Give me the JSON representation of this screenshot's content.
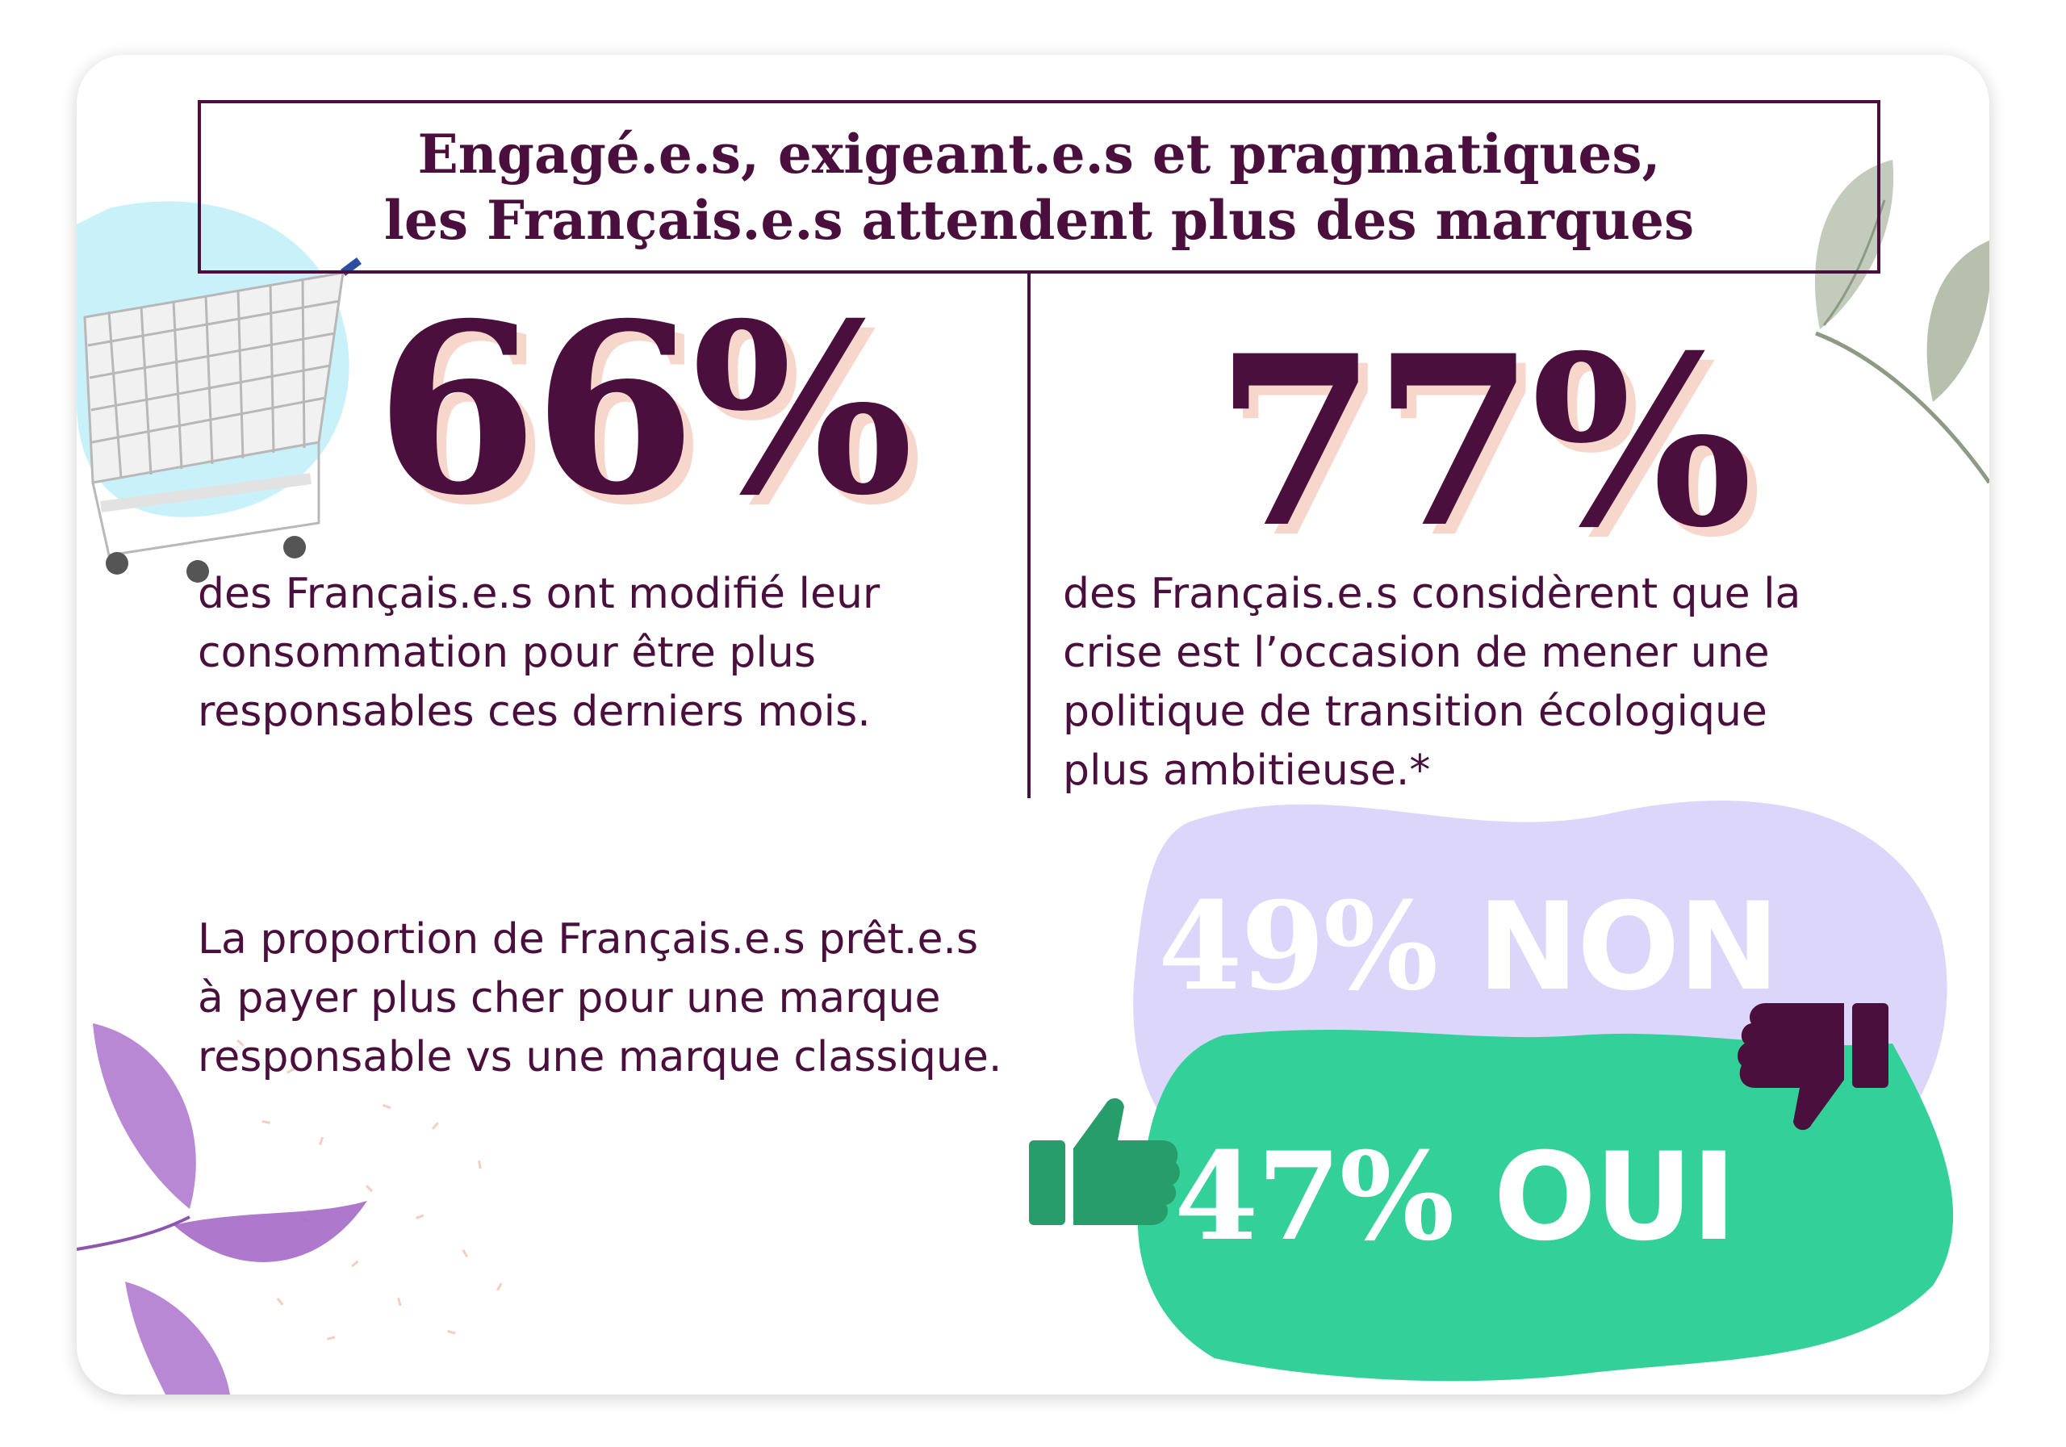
{
  "title": {
    "line1": "Engagé.e.s, exigeant.e.s et pragmatiques,",
    "line2": "les Français.e.s attendent plus des marques"
  },
  "stats": [
    {
      "value": "66%",
      "description_lines": [
        "des Français.e.s ont modifié leur",
        "consommation pour être plus",
        "responsables ces derniers mois."
      ]
    },
    {
      "value": "77%",
      "description_lines": [
        "des Français.e.s considèrent que la",
        "crise est l’occasion de mener une",
        "politique de transition écologique",
        "plus ambitieuse.*"
      ]
    }
  ],
  "survey": {
    "question_lines": [
      "La proportion de Français.e.s prêt.e.s",
      "à payer plus cher pour une marque",
      "responsable vs une marque classique."
    ],
    "no": {
      "percent": "49%",
      "label": "NON",
      "value": 49
    },
    "yes": {
      "percent": "47%",
      "label": "OUI",
      "value": 47
    }
  },
  "colors": {
    "primary": "#4a0f3c",
    "shadow": "#f7d7cc",
    "no_blob": "#dcd6fb",
    "yes_blob": "#33d199",
    "thumb_up": "#289d6c",
    "thumb_down": "#4a0f3c",
    "cart_bg": "#c9f1fa"
  },
  "icons": {
    "cart": "shopping-cart-icon",
    "thumb_up": "thumbs-up-icon",
    "thumb_down": "thumbs-down-icon"
  }
}
